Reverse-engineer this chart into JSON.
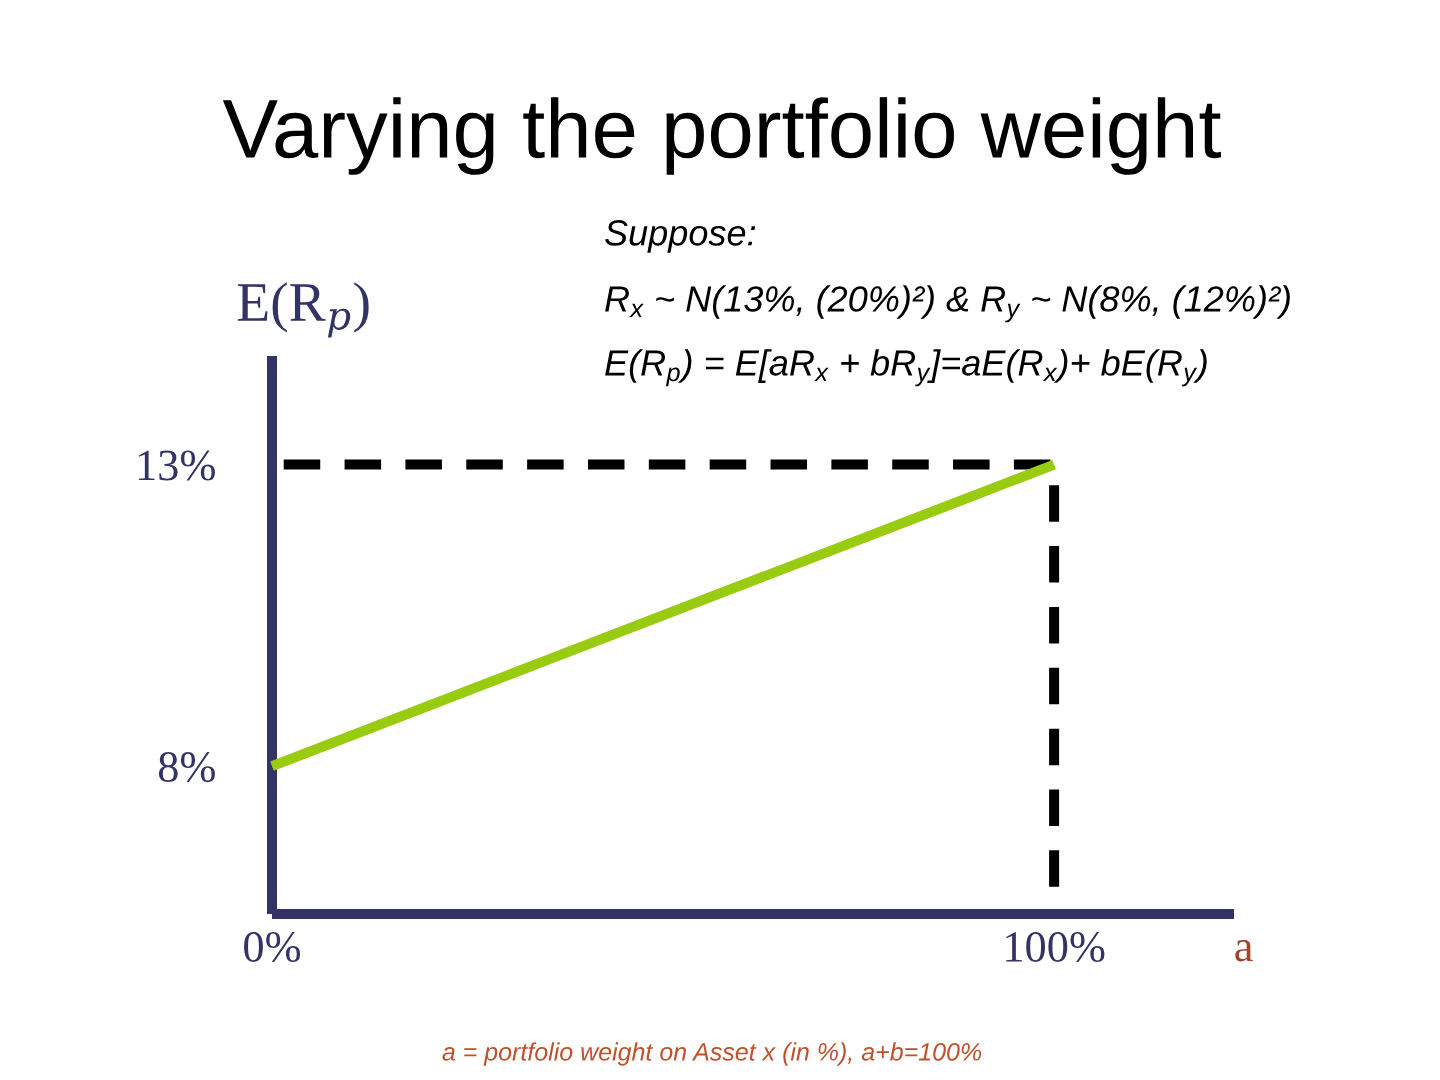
{
  "chart_data": {
    "type": "line",
    "title": "Varying the portfolio weight",
    "ylabel": "E(R$_{p}$)",
    "xlabel": "a",
    "annotations": [
      "Suppose:",
      "R$_{x}$ ~ N(13%, (20%)²) & R$_{y}$ ~ N(8%, (12%)²)",
      "E(R$_{p}$) = E[aR$_{x}$ + bR$_{y}$]=aE(R$_{x}$)+ bE(R$_{y}$)",
      "a = portfolio weight on Asset x (in %), a+b=100%"
    ],
    "series": [
      {
        "color": "#000000",
        "line_style": "dashed",
        "x": [
          1.5,
          100,
          100
        ],
        "values": [
          13,
          13,
          6
        ]
      },
      {
        "color": "#99cc11",
        "line_style": "solid",
        "x": [
          0,
          100
        ],
        "values": [
          8,
          13
        ]
      }
    ],
    "xlim": [
      0,
      123
    ],
    "xticks": [
      {
        "value": 0,
        "label": "0%"
      },
      {
        "value": 100,
        "label": "100%"
      }
    ],
    "ylim": [
      5.55,
      14.8
    ],
    "yticks": [
      {
        "value": 8,
        "label": "8%"
      },
      {
        "value": 13,
        "label": "13%"
      }
    ],
    "grid": false,
    "marker": "none"
  }
}
